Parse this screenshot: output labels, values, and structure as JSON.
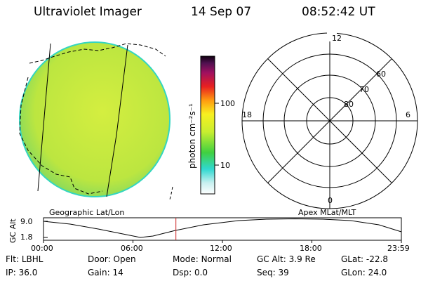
{
  "header": {
    "instrument": "Ultraviolet Imager",
    "date": "14 Sep 07",
    "time": "08:52:42 UT"
  },
  "colorbar": {
    "unit": "photon cm⁻²s⁻¹",
    "ticks": [
      "100",
      "10"
    ],
    "scale": "log"
  },
  "polar": {
    "mlt_labels": [
      "12",
      "18",
      "6",
      "0"
    ],
    "lat_labels": [
      "60",
      "70",
      "80"
    ]
  },
  "image_panel": {
    "label": "Geographic Lat/Lon",
    "colors": {
      "fill": "#c3ea3a",
      "rim": "#33d6c0",
      "bg": "#ffffff"
    }
  },
  "polar_panel": {
    "label": "Apex MLat/MLT"
  },
  "altitude_plot": {
    "ylabel": "GC Alt",
    "yticks": [
      "9.0",
      "1.8"
    ],
    "xticks": [
      "00:00",
      "06:00",
      "12:00",
      "18:00",
      "23:59"
    ],
    "current_time_hours": 8.88,
    "marker_color": "#cc2222"
  },
  "footer": {
    "row1": [
      {
        "key": "Flt:",
        "value": "LBHL"
      },
      {
        "key": "Door:",
        "value": "Open"
      },
      {
        "key": "Mode:",
        "value": "Normal"
      },
      {
        "key": "GC Alt:",
        "value": "3.9 Re"
      },
      {
        "key": "GLat:",
        "value": "-22.8"
      }
    ],
    "row2": [
      {
        "key": "IP:",
        "value": "36.0"
      },
      {
        "key": "Gain:",
        "value": "14"
      },
      {
        "key": "Dsp:",
        "value": "0.0"
      },
      {
        "key": "Seq:",
        "value": "39"
      },
      {
        "key": "GLon:",
        "value": "24.0"
      }
    ]
  }
}
